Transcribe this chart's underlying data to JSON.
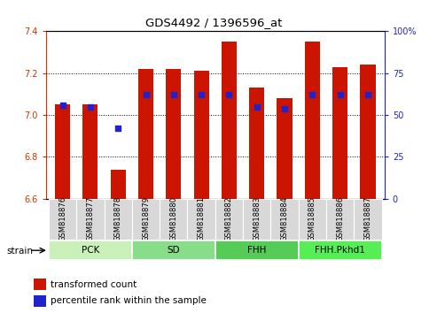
{
  "title": "GDS4492 / 1396596_at",
  "samples": [
    "GSM818876",
    "GSM818877",
    "GSM818878",
    "GSM818879",
    "GSM818880",
    "GSM818881",
    "GSM818882",
    "GSM818883",
    "GSM818884",
    "GSM818885",
    "GSM818886",
    "GSM818887"
  ],
  "transformed_count": [
    7.05,
    7.05,
    6.74,
    7.22,
    7.22,
    7.21,
    7.35,
    7.13,
    7.08,
    7.35,
    7.23,
    7.24
  ],
  "percentile_rank": [
    56,
    55,
    42,
    62,
    62,
    62,
    62,
    55,
    54,
    62,
    62,
    62
  ],
  "groups": [
    {
      "label": "PCK",
      "start": 0,
      "end": 3,
      "color": "#c8f0b8"
    },
    {
      "label": "SD",
      "start": 3,
      "end": 6,
      "color": "#88dd88"
    },
    {
      "label": "FHH",
      "start": 6,
      "end": 9,
      "color": "#55cc55"
    },
    {
      "label": "FHH.Pkhd1",
      "start": 9,
      "end": 12,
      "color": "#55ee55"
    }
  ],
  "ymin": 6.6,
  "ymax": 7.4,
  "y_ticks": [
    6.6,
    6.8,
    7.0,
    7.2,
    7.4
  ],
  "right_y_ticks": [
    0,
    25,
    50,
    75,
    100
  ],
  "right_y_tick_labels": [
    "0",
    "25",
    "50",
    "75",
    "100%"
  ],
  "bar_color": "#cc1500",
  "dot_color": "#2222cc",
  "legend_items": [
    {
      "label": "transformed count",
      "color": "#cc1500"
    },
    {
      "label": "percentile rank within the sample",
      "color": "#2222cc"
    }
  ],
  "tick_label_fontsize": 7.0,
  "title_fontsize": 9.5
}
